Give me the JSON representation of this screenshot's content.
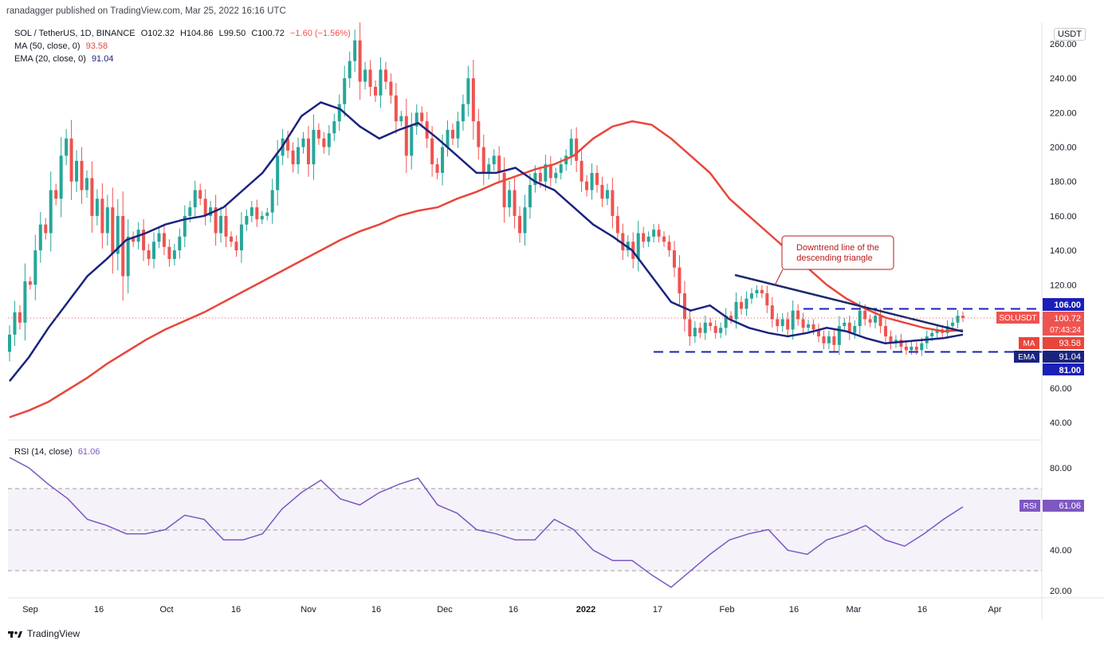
{
  "header": {
    "publisher": "ranadagger published on TradingView.com, Mar 25, 2022 16:16 UTC"
  },
  "legend": {
    "symbol": "SOL / TetherUS, 1D, BINANCE",
    "open": "O102.32",
    "high": "H104.86",
    "low": "L99.50",
    "close": "C100.72",
    "change": "−1.60 (−1.56%)",
    "ma": "MA (50, close, 0)",
    "ma_value": "93.58",
    "ema": "EMA (20, close, 0)",
    "ema_value": "91.04",
    "rsi": "RSI (14, close)",
    "rsi_value": "61.06"
  },
  "currency_badge": "USDT",
  "annotation": "Downtrend line of the descending triangle",
  "price_tags": {
    "resistance": "106.00",
    "symbol": "SOLUSDT",
    "last": "100.72",
    "countdown": "07:43:24",
    "ma_label": "MA",
    "ma": "93.58",
    "ema_label": "EMA",
    "ema": "91.04",
    "support": "81.00",
    "rsi_label": "RSI",
    "rsi": "61.06"
  },
  "footer": {
    "brand": "TradingView"
  },
  "colors": {
    "up": "#26a69a",
    "down": "#ef5350",
    "ma": "#e8463c",
    "ema": "#1a237e",
    "rsi": "#7e57c2",
    "levels": "#1c1fb8"
  },
  "chart_data": [
    {
      "type": "candlestick",
      "yticks": [
        "260.00",
        "240.00",
        "220.00",
        "200.00",
        "180.00",
        "160.00",
        "140.00",
        "120.00",
        "100.00",
        "80.00",
        "60.00",
        "40.00"
      ],
      "ylim": [
        30,
        262
      ],
      "xticks": [
        "Sep",
        "16",
        "Oct",
        "16",
        "Nov",
        "16",
        "Dec",
        "16",
        "2022",
        "17",
        "Feb",
        "16",
        "Mar",
        "16",
        "Apr"
      ],
      "levels": {
        "resistance": 106,
        "support": 81
      },
      "price": [
        [
          81,
          91
        ],
        [
          91,
          104
        ],
        [
          104,
          98
        ],
        [
          98,
          122
        ],
        [
          122,
          120
        ],
        [
          120,
          140
        ],
        [
          140,
          155
        ],
        [
          155,
          150
        ],
        [
          150,
          175
        ],
        [
          175,
          170
        ],
        [
          170,
          195
        ],
        [
          195,
          205
        ],
        [
          205,
          180
        ],
        [
          180,
          192
        ],
        [
          192,
          175
        ],
        [
          175,
          182
        ],
        [
          182,
          160
        ],
        [
          160,
          170
        ],
        [
          170,
          150
        ],
        [
          150,
          165
        ],
        [
          165,
          138
        ],
        [
          138,
          160
        ],
        [
          160,
          125
        ],
        [
          125,
          148
        ],
        [
          148,
          145
        ],
        [
          145,
          152
        ],
        [
          152,
          140
        ],
        [
          140,
          135
        ],
        [
          135,
          145
        ],
        [
          145,
          150
        ],
        [
          150,
          142
        ],
        [
          142,
          135
        ],
        [
          135,
          140
        ],
        [
          140,
          148
        ],
        [
          148,
          160
        ],
        [
          160,
          165
        ],
        [
          165,
          175
        ],
        [
          175,
          170
        ],
        [
          170,
          160
        ],
        [
          160,
          165
        ],
        [
          165,
          150
        ],
        [
          150,
          160
        ],
        [
          160,
          148
        ],
        [
          148,
          145
        ],
        [
          145,
          140
        ],
        [
          140,
          155
        ],
        [
          155,
          160
        ],
        [
          160,
          165
        ],
        [
          165,
          158
        ],
        [
          158,
          160
        ],
        [
          160,
          162
        ],
        [
          162,
          175
        ],
        [
          175,
          195
        ],
        [
          195,
          205
        ],
        [
          205,
          198
        ],
        [
          198,
          190
        ],
        [
          190,
          200
        ],
        [
          200,
          205
        ],
        [
          205,
          190
        ],
        [
          190,
          210
        ],
        [
          210,
          205
        ],
        [
          205,
          200
        ],
        [
          200,
          208
        ],
        [
          208,
          215
        ],
        [
          215,
          225
        ],
        [
          225,
          240
        ],
        [
          240,
          250
        ],
        [
          250,
          262
        ],
        [
          262,
          238
        ],
        [
          238,
          245
        ],
        [
          245,
          235
        ],
        [
          235,
          230
        ],
        [
          230,
          245
        ],
        [
          245,
          238
        ],
        [
          238,
          230
        ],
        [
          230,
          215
        ],
        [
          215,
          218
        ],
        [
          218,
          195
        ],
        [
          195,
          212
        ],
        [
          212,
          220
        ],
        [
          220,
          215
        ],
        [
          215,
          205
        ],
        [
          205,
          190
        ],
        [
          190,
          185
        ],
        [
          185,
          200
        ],
        [
          200,
          210
        ],
        [
          210,
          205
        ],
        [
          205,
          215
        ],
        [
          215,
          225
        ],
        [
          225,
          240
        ],
        [
          240,
          215
        ],
        [
          215,
          200
        ],
        [
          200,
          185
        ],
        [
          185,
          190
        ],
        [
          190,
          195
        ],
        [
          195,
          185
        ],
        [
          185,
          165
        ],
        [
          165,
          175
        ],
        [
          175,
          160
        ],
        [
          160,
          150
        ],
        [
          150,
          165
        ],
        [
          165,
          178
        ],
        [
          178,
          185
        ],
        [
          185,
          180
        ],
        [
          180,
          190
        ],
        [
          190,
          182
        ],
        [
          182,
          185
        ],
        [
          185,
          190
        ],
        [
          190,
          195
        ],
        [
          195,
          205
        ],
        [
          205,
          192
        ],
        [
          192,
          180
        ],
        [
          180,
          175
        ],
        [
          175,
          185
        ],
        [
          185,
          178
        ],
        [
          178,
          170
        ],
        [
          170,
          175
        ],
        [
          175,
          160
        ],
        [
          160,
          150
        ],
        [
          150,
          140
        ],
        [
          140,
          145
        ],
        [
          145,
          135
        ],
        [
          135,
          150
        ],
        [
          150,
          145
        ],
        [
          145,
          148
        ],
        [
          148,
          152
        ],
        [
          152,
          148
        ],
        [
          148,
          145
        ],
        [
          145,
          140
        ],
        [
          140,
          130
        ],
        [
          130,
          115
        ],
        [
          115,
          100
        ],
        [
          100,
          90
        ],
        [
          90,
          95
        ],
        [
          95,
          92
        ],
        [
          92,
          98
        ],
        [
          98,
          96
        ],
        [
          96,
          92
        ],
        [
          92,
          95
        ],
        [
          95,
          102
        ],
        [
          102,
          100
        ],
        [
          100,
          110
        ],
        [
          110,
          106
        ],
        [
          106,
          112
        ],
        [
          112,
          115
        ],
        [
          115,
          117
        ],
        [
          117,
          115
        ],
        [
          115,
          108
        ],
        [
          108,
          100
        ],
        [
          100,
          96
        ],
        [
          96,
          100
        ],
        [
          100,
          94
        ],
        [
          94,
          105
        ],
        [
          105,
          100
        ],
        [
          100,
          95
        ],
        [
          95,
          97
        ],
        [
          97,
          94
        ],
        [
          94,
          90
        ],
        [
          90,
          86
        ],
        [
          86,
          90
        ],
        [
          90,
          85
        ],
        [
          85,
          96
        ],
        [
          96,
          98
        ],
        [
          98,
          92
        ],
        [
          92,
          96
        ],
        [
          96,
          105
        ],
        [
          105,
          100
        ],
        [
          100,
          98
        ],
        [
          98,
          102
        ],
        [
          102,
          96
        ],
        [
          96,
          90
        ],
        [
          90,
          86
        ],
        [
          86,
          88
        ],
        [
          88,
          84
        ],
        [
          84,
          82
        ],
        [
          82,
          84
        ],
        [
          84,
          82
        ],
        [
          82,
          86
        ],
        [
          86,
          90
        ],
        [
          90,
          92
        ],
        [
          92,
          94
        ],
        [
          94,
          92
        ],
        [
          92,
          96
        ],
        [
          96,
          98
        ],
        [
          98,
          102
        ],
        [
          102,
          100.72
        ]
      ],
      "ma_50": [
        43,
        47,
        52,
        59,
        66,
        74,
        81,
        88,
        94,
        99,
        104,
        110,
        116,
        122,
        128,
        134,
        140,
        146,
        151,
        155,
        160,
        163,
        165,
        170,
        174,
        179,
        183,
        187,
        190,
        195,
        205,
        212,
        215,
        213,
        205,
        195,
        185,
        170,
        160,
        150,
        140,
        130,
        120,
        112,
        106,
        101,
        98,
        95,
        93,
        93.58
      ],
      "ema_20": [
        64,
        78,
        95,
        110,
        125,
        135,
        146,
        150,
        155,
        158,
        160,
        165,
        175,
        185,
        200,
        218,
        226,
        222,
        212,
        205,
        210,
        214,
        205,
        195,
        185,
        185,
        188,
        180,
        175,
        165,
        155,
        148,
        140,
        125,
        110,
        105,
        108,
        100,
        95,
        92,
        90,
        92,
        95,
        93,
        89,
        86,
        87,
        88,
        89,
        91.04
      ],
      "rsi": [
        85,
        80,
        72,
        65,
        55,
        52,
        48,
        48,
        50,
        57,
        55,
        45,
        45,
        48,
        60,
        68,
        74,
        65,
        62,
        68,
        72,
        75,
        62,
        58,
        50,
        48,
        45,
        45,
        55,
        50,
        40,
        35,
        35,
        28,
        22,
        30,
        38,
        45,
        48,
        50,
        40,
        38,
        45,
        48,
        52,
        45,
        42,
        48,
        55,
        61.06
      ]
    }
  ]
}
